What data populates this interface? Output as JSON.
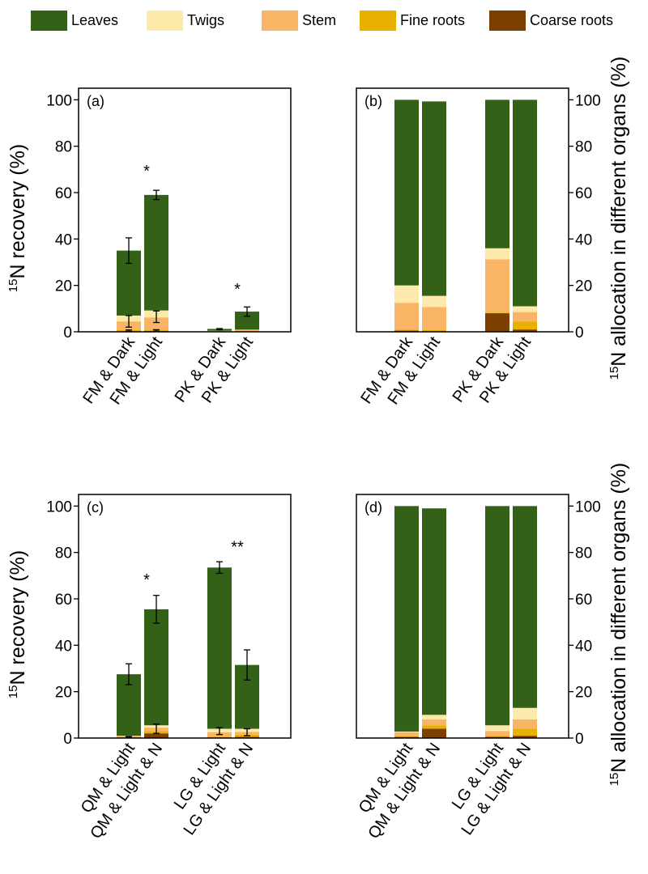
{
  "chart_data": {
    "type": "bar",
    "stacked": true,
    "legend": {
      "placement": "top",
      "entries": [
        {
          "name": "Leaves",
          "color": "#336117"
        },
        {
          "name": "Twigs",
          "color": "#FDE9A9"
        },
        {
          "name": "Stem",
          "color": "#F9B466"
        },
        {
          "name": "Fine roots",
          "color": "#E8B100"
        },
        {
          "name": "Coarse roots",
          "color": "#7B3F00"
        }
      ]
    },
    "panels": [
      {
        "label": "(a)",
        "ylabel_main": "N recovery (%)",
        "ylabel_sup": "15",
        "ylabel_side": "left",
        "ylim": [
          0,
          105
        ],
        "yticks": [
          "0",
          "20",
          "40",
          "60",
          "80",
          "100"
        ],
        "categories": [
          "FM & Dark",
          "FM & Light",
          "PK & Dark",
          "PK & Light"
        ],
        "series": [
          {
            "name": "Coarse roots",
            "values": [
              0.3,
              0.4,
              0.1,
              0.1
            ]
          },
          {
            "name": "Fine roots",
            "values": [
              0.5,
              0.5,
              0.1,
              0.3
            ]
          },
          {
            "name": "Stem",
            "values": [
              3.7,
              5.3,
              0.2,
              0.3
            ]
          },
          {
            "name": "Twigs",
            "values": [
              2.5,
              3.0,
              0.05,
              0.2
            ]
          },
          {
            "name": "Leaves",
            "values": [
              28.0,
              49.8,
              0.8,
              7.8
            ]
          }
        ],
        "errors": [
          {
            "category": 0,
            "value": 35.0,
            "err": 5.5
          },
          {
            "category": 1,
            "value": 59.0,
            "err": 2.0
          },
          {
            "category": 2,
            "value": 1.1,
            "err": 0.3
          },
          {
            "category": 3,
            "value": 8.7,
            "err": 2.0
          },
          {
            "category": 0,
            "value": 4.5,
            "err": 2.5
          },
          {
            "category": 1,
            "value": 6.5,
            "err": 2.5
          },
          {
            "category": 0,
            "value": 0.5,
            "err": 0.3
          },
          {
            "category": 1,
            "value": 0.6,
            "err": 0.3
          }
        ],
        "significance": [
          {
            "category": 1,
            "label": "*",
            "y": 67
          },
          {
            "category": 3,
            "label": "*",
            "y": 16
          }
        ]
      },
      {
        "label": "(b)",
        "ylabel_main": "N allocation in different organs (%)",
        "ylabel_sup": "15",
        "ylabel_side": "right",
        "ylim": [
          0,
          105
        ],
        "yticks": [
          "0",
          "20",
          "40",
          "60",
          "80",
          "100"
        ],
        "categories": [
          "FM & Dark",
          "FM & Light",
          "PK & Dark",
          "PK & Light"
        ],
        "series": [
          {
            "name": "Coarse roots",
            "values": [
              0.5,
              0.3,
              8.0,
              1.0
            ]
          },
          {
            "name": "Fine roots",
            "values": [
              0.5,
              0.4,
              0.3,
              3.5
            ]
          },
          {
            "name": "Stem",
            "values": [
              11.5,
              10.0,
              23.0,
              4.0
            ]
          },
          {
            "name": "Twigs",
            "values": [
              7.5,
              4.8,
              4.7,
              2.5
            ]
          },
          {
            "name": "Leaves",
            "values": [
              80.0,
              83.8,
              64.0,
              89.0
            ]
          }
        ],
        "errors": [],
        "significance": []
      },
      {
        "label": "(c)",
        "ylabel_main": "N recovery (%)",
        "ylabel_sup": "15",
        "ylabel_side": "left",
        "ylim": [
          0,
          105
        ],
        "yticks": [
          "0",
          "20",
          "40",
          "60",
          "80",
          "100"
        ],
        "categories": [
          "QM & Light",
          "QM & Light & N",
          "LG & Light",
          "LG & Light & N"
        ],
        "series": [
          {
            "name": "Coarse roots",
            "values": [
              0.3,
              2.0,
              0.3,
              0.5
            ]
          },
          {
            "name": "Fine roots",
            "values": [
              0.1,
              1.0,
              0.2,
              1.0
            ]
          },
          {
            "name": "Stem",
            "values": [
              0.5,
              1.5,
              2.0,
              1.2
            ]
          },
          {
            "name": "Twigs",
            "values": [
              0.1,
              1.0,
              1.5,
              1.3
            ]
          },
          {
            "name": "Leaves",
            "values": [
              26.5,
              50.0,
              69.5,
              27.5
            ]
          }
        ],
        "errors": [
          {
            "category": 0,
            "value": 27.5,
            "err": 4.5
          },
          {
            "category": 1,
            "value": 55.5,
            "err": 6.0
          },
          {
            "category": 2,
            "value": 73.5,
            "err": 2.5
          },
          {
            "category": 3,
            "value": 31.5,
            "err": 6.5
          },
          {
            "category": 1,
            "value": 4.0,
            "err": 2.0
          },
          {
            "category": 2,
            "value": 3.0,
            "err": 1.5
          },
          {
            "category": 3,
            "value": 2.5,
            "err": 1.5
          },
          {
            "category": 0,
            "value": 0.5,
            "err": 0.2
          }
        ],
        "significance": [
          {
            "category": 1,
            "label": "*",
            "y": 66
          },
          {
            "category": 3,
            "label": "**",
            "y": 80
          }
        ]
      },
      {
        "label": "(d)",
        "ylabel_main": "N allocation in different organs (%)",
        "ylabel_sup": "15",
        "ylabel_side": "right",
        "ylim": [
          0,
          105
        ],
        "yticks": [
          "0",
          "20",
          "40",
          "60",
          "80",
          "100"
        ],
        "categories": [
          "QM & Light",
          "QM & Light & N",
          "LG & Light",
          "LG & Light & N"
        ],
        "series": [
          {
            "name": "Coarse roots",
            "values": [
              0.5,
              4.0,
              0.5,
              1.0
            ]
          },
          {
            "name": "Fine roots",
            "values": [
              0.3,
              1.5,
              0.5,
              3.0
            ]
          },
          {
            "name": "Stem",
            "values": [
              1.7,
              2.5,
              2.0,
              4.0
            ]
          },
          {
            "name": "Twigs",
            "values": [
              0.3,
              2.0,
              2.5,
              5.0
            ]
          },
          {
            "name": "Leaves",
            "values": [
              97.2,
              89.0,
              94.5,
              87.0
            ]
          }
        ],
        "errors": [],
        "significance": []
      }
    ]
  }
}
